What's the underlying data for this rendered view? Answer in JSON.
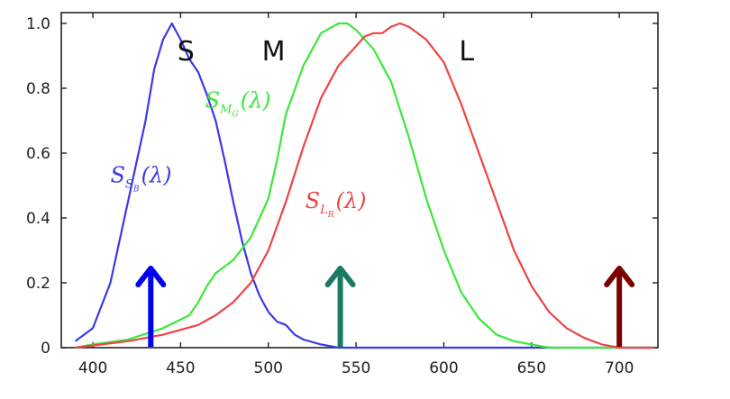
{
  "chart_data": {
    "type": "line",
    "title": "",
    "xlabel": "",
    "ylabel": "",
    "xlim": [
      382,
      722
    ],
    "ylim": [
      0,
      1.0
    ],
    "x_ticks": [
      400,
      450,
      500,
      550,
      600,
      650,
      700
    ],
    "y_ticks": [
      0,
      0.2,
      0.4,
      0.6,
      0.8,
      1.0
    ],
    "y_tick_labels": [
      "0",
      "0.2",
      "0.4",
      "0.6",
      "0.8",
      "1.0"
    ],
    "grid": false,
    "cone_labels": [
      {
        "text": "S",
        "x": 453,
        "y": 0.92
      },
      {
        "text": "M",
        "x": 503,
        "y": 0.92
      },
      {
        "text": "L",
        "x": 613,
        "y": 0.92
      }
    ],
    "series": [
      {
        "key": "S",
        "color": "#3a3ae8",
        "label": {
          "base": "S",
          "sub": "S",
          "subsub": "B",
          "arg": "(λ)",
          "x": 410,
          "y": 0.51
        },
        "points": [
          [
            390,
            0.02
          ],
          [
            400,
            0.06
          ],
          [
            410,
            0.2
          ],
          [
            420,
            0.45
          ],
          [
            430,
            0.7
          ],
          [
            435,
            0.86
          ],
          [
            440,
            0.95
          ],
          [
            445,
            1.0
          ],
          [
            450,
            0.95
          ],
          [
            455,
            0.89
          ],
          [
            460,
            0.85
          ],
          [
            465,
            0.78
          ],
          [
            470,
            0.7
          ],
          [
            475,
            0.58
          ],
          [
            480,
            0.45
          ],
          [
            485,
            0.33
          ],
          [
            490,
            0.23
          ],
          [
            495,
            0.16
          ],
          [
            500,
            0.11
          ],
          [
            505,
            0.08
          ],
          [
            510,
            0.07
          ],
          [
            515,
            0.04
          ],
          [
            520,
            0.025
          ],
          [
            530,
            0.01
          ],
          [
            540,
            0.0
          ],
          [
            560,
            0.0
          ],
          [
            720,
            0.0
          ]
        ]
      },
      {
        "key": "M",
        "color": "#3be83b",
        "label": {
          "base": "S",
          "sub": "M",
          "subsub": "G",
          "arg": "(λ)",
          "x": 464,
          "y": 0.74
        },
        "points": [
          [
            390,
            0.0
          ],
          [
            400,
            0.01
          ],
          [
            420,
            0.025
          ],
          [
            440,
            0.06
          ],
          [
            455,
            0.1
          ],
          [
            460,
            0.14
          ],
          [
            465,
            0.19
          ],
          [
            470,
            0.23
          ],
          [
            480,
            0.27
          ],
          [
            490,
            0.34
          ],
          [
            500,
            0.46
          ],
          [
            505,
            0.58
          ],
          [
            510,
            0.72
          ],
          [
            520,
            0.87
          ],
          [
            530,
            0.97
          ],
          [
            540,
            1.0
          ],
          [
            545,
            1.0
          ],
          [
            550,
            0.98
          ],
          [
            560,
            0.92
          ],
          [
            570,
            0.82
          ],
          [
            580,
            0.65
          ],
          [
            590,
            0.46
          ],
          [
            600,
            0.3
          ],
          [
            610,
            0.17
          ],
          [
            620,
            0.09
          ],
          [
            630,
            0.04
          ],
          [
            640,
            0.02
          ],
          [
            660,
            0.0
          ],
          [
            720,
            0.0
          ]
        ]
      },
      {
        "key": "L",
        "color": "#ee4444",
        "label": {
          "base": "S",
          "sub": "L",
          "subsub": "R",
          "arg": "(λ)",
          "x": 521,
          "y": 0.43
        },
        "points": [
          [
            390,
            0.0
          ],
          [
            420,
            0.02
          ],
          [
            440,
            0.04
          ],
          [
            460,
            0.07
          ],
          [
            470,
            0.1
          ],
          [
            480,
            0.14
          ],
          [
            490,
            0.2
          ],
          [
            500,
            0.3
          ],
          [
            510,
            0.45
          ],
          [
            520,
            0.62
          ],
          [
            530,
            0.77
          ],
          [
            540,
            0.87
          ],
          [
            550,
            0.93
          ],
          [
            555,
            0.96
          ],
          [
            560,
            0.97
          ],
          [
            565,
            0.97
          ],
          [
            570,
            0.99
          ],
          [
            575,
            1.0
          ],
          [
            580,
            0.99
          ],
          [
            585,
            0.97
          ],
          [
            590,
            0.95
          ],
          [
            600,
            0.88
          ],
          [
            610,
            0.75
          ],
          [
            620,
            0.6
          ],
          [
            630,
            0.45
          ],
          [
            640,
            0.3
          ],
          [
            650,
            0.19
          ],
          [
            660,
            0.11
          ],
          [
            670,
            0.06
          ],
          [
            680,
            0.03
          ],
          [
            690,
            0.01
          ],
          [
            700,
            0.0
          ],
          [
            720,
            0.0
          ]
        ]
      }
    ],
    "arrows": [
      {
        "key": "B",
        "x": 433,
        "color": "#0000ee"
      },
      {
        "key": "G",
        "x": 541,
        "color": "#1a7a64"
      },
      {
        "key": "R",
        "x": 700,
        "color": "#7a0000"
      }
    ]
  }
}
